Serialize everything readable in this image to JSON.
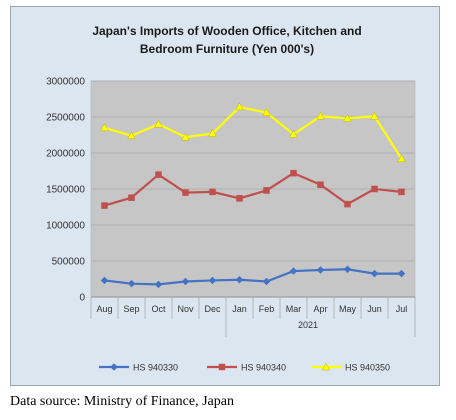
{
  "chart_data": {
    "type": "line",
    "title": [
      "Japan's Imports of  Wooden  Office, Kitchen and",
      "Bedroom Furniture (Yen 000's)"
    ],
    "categories": [
      "Aug",
      "Sep",
      "Oct",
      "Nov",
      "Dec",
      "Jan",
      "Feb",
      "Mar",
      "Apr",
      "May",
      "Jun",
      "Jul"
    ],
    "year_label": "2021",
    "yticks": [
      "0",
      "500000",
      "1000000",
      "1500000",
      "2000000",
      "2500000",
      "3000000"
    ],
    "ylim": [
      0,
      3000000
    ],
    "grid": true,
    "legend_position": "bottom",
    "series": [
      {
        "name": "HS 940330",
        "color": "#4472c4",
        "marker": "diamond",
        "values": [
          230000,
          185000,
          175000,
          215000,
          230000,
          240000,
          215000,
          360000,
          375000,
          385000,
          325000,
          325000
        ]
      },
      {
        "name": "HS 940340",
        "color": "#c0504d",
        "marker": "square",
        "values": [
          1270000,
          1380000,
          1700000,
          1450000,
          1460000,
          1370000,
          1480000,
          1720000,
          1560000,
          1290000,
          1500000,
          1460000
        ]
      },
      {
        "name": "HS 940350",
        "color": "#ffff00",
        "marker": "triangle",
        "values": [
          2350000,
          2240000,
          2400000,
          2220000,
          2270000,
          2640000,
          2560000,
          2260000,
          2510000,
          2480000,
          2510000,
          1920000
        ]
      }
    ]
  },
  "caption": "Data source: Ministry of Finance, Japan"
}
